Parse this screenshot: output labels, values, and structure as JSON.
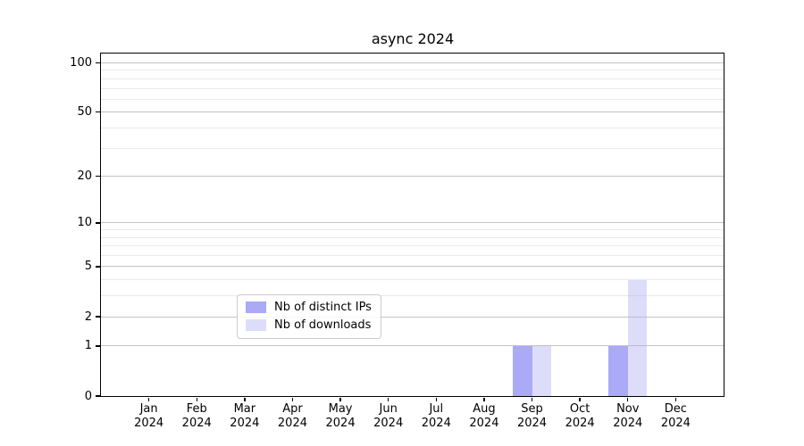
{
  "chart_data": {
    "type": "bar",
    "title": "async 2024",
    "xlabel": "",
    "ylabel": "",
    "grid": true,
    "legend_position": "lower-center-inside",
    "categories": [
      {
        "month": "Jan",
        "year": "2024"
      },
      {
        "month": "Feb",
        "year": "2024"
      },
      {
        "month": "Mar",
        "year": "2024"
      },
      {
        "month": "Apr",
        "year": "2024"
      },
      {
        "month": "May",
        "year": "2024"
      },
      {
        "month": "Jun",
        "year": "2024"
      },
      {
        "month": "Jul",
        "year": "2024"
      },
      {
        "month": "Aug",
        "year": "2024"
      },
      {
        "month": "Sep",
        "year": "2024"
      },
      {
        "month": "Oct",
        "year": "2024"
      },
      {
        "month": "Nov",
        "year": "2024"
      },
      {
        "month": "Dec",
        "year": "2024"
      }
    ],
    "series": [
      {
        "name": "Nb of distinct IPs",
        "color": "#6464ee",
        "alpha": 0.55,
        "values": [
          0,
          0,
          0,
          0,
          0,
          0,
          0,
          0,
          1,
          0,
          1,
          0
        ]
      },
      {
        "name": "Nb of downloads",
        "color": "#b4b4f2",
        "alpha": 0.45,
        "values": [
          0,
          0,
          0,
          0,
          0,
          0,
          0,
          0,
          1,
          0,
          4,
          0
        ]
      }
    ],
    "y_axis": {
      "scale": "log1p",
      "major_ticks": [
        0,
        1,
        2,
        5,
        10,
        20,
        50,
        100
      ],
      "minor_gridlines": [
        3,
        4,
        6,
        7,
        8,
        9,
        30,
        40,
        60,
        70,
        80,
        90
      ],
      "top_value": 114,
      "ylim": [
        0,
        100
      ]
    },
    "colors": {
      "major_grid": "#c2c2c2",
      "minor_grid": "#eaeaea",
      "spine": "#000000",
      "legend_border": "#cccccc"
    }
  }
}
